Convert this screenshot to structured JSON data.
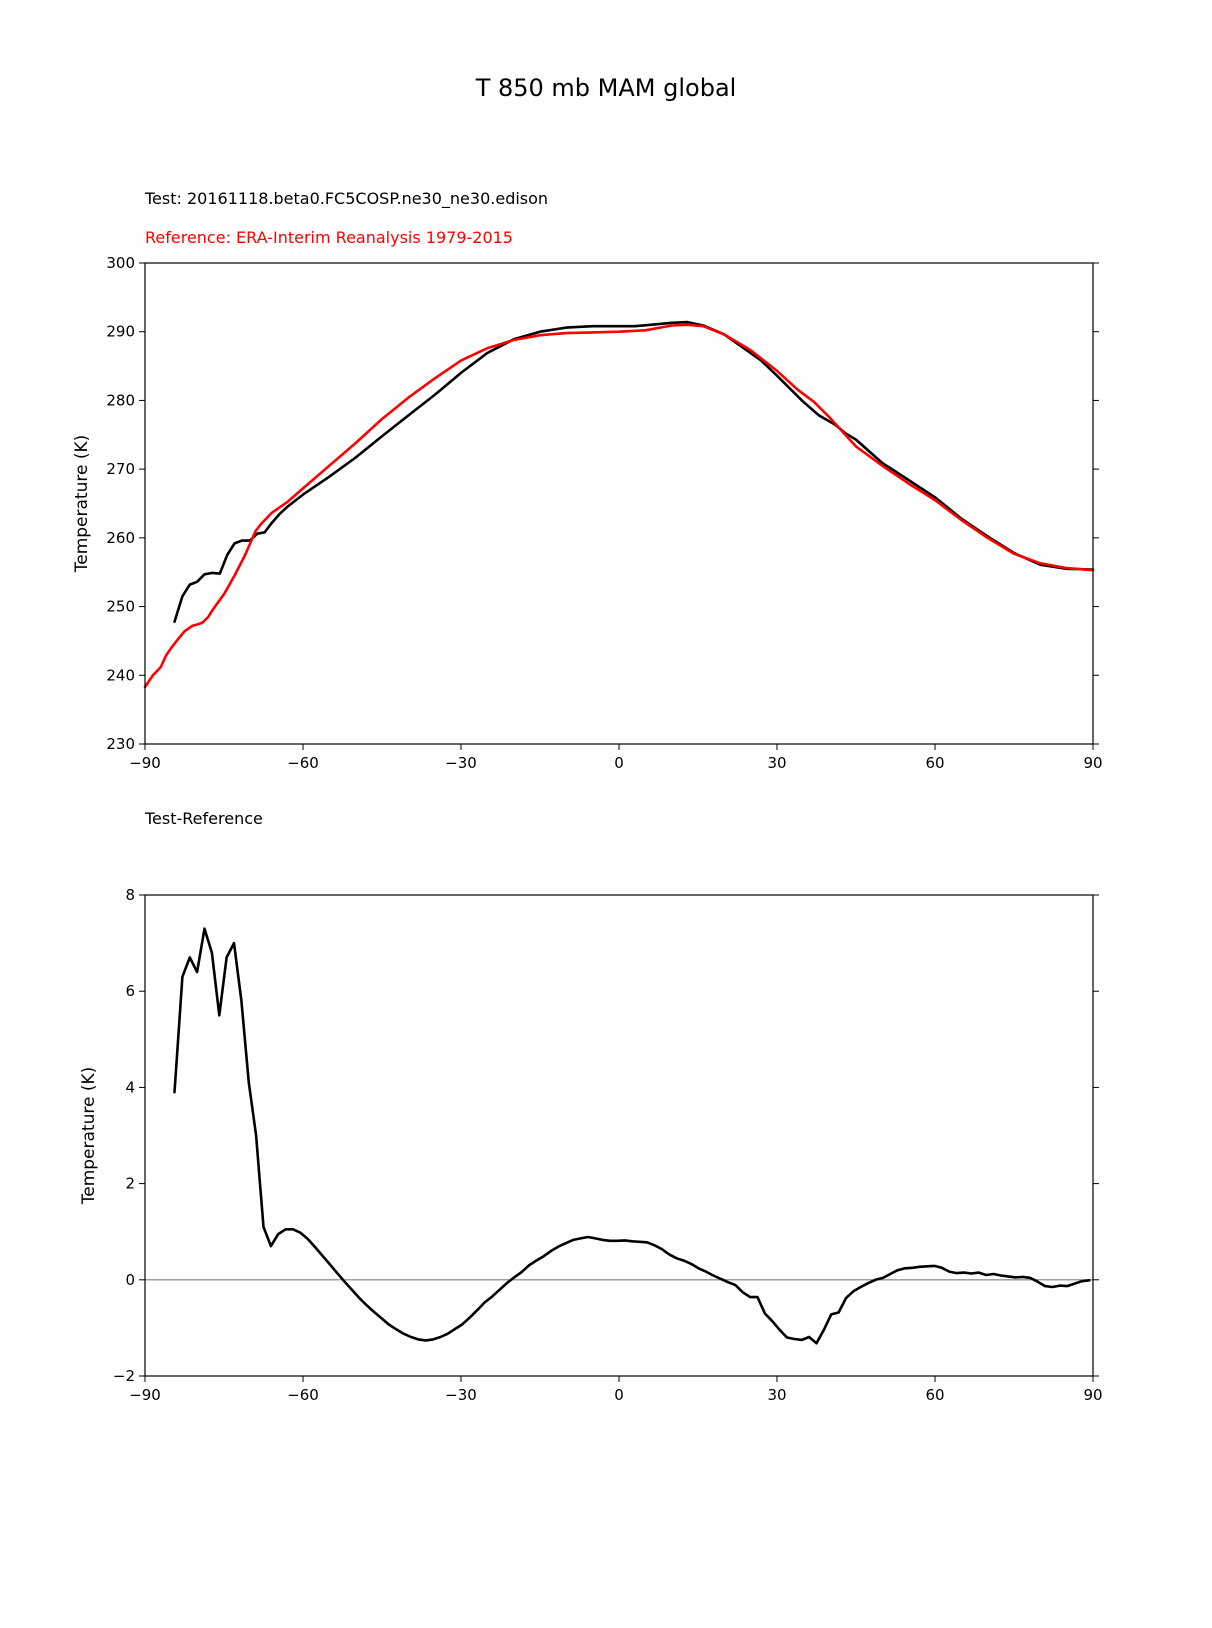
{
  "figure": {
    "title": "T 850 mb MAM global"
  },
  "chart_data": [
    {
      "type": "line",
      "test_label": "Test: 20161118.beta0.FC5COSP.ne30_ne30.edison",
      "reference_label": "Reference: ERA-Interim Reanalysis 1979-2015",
      "ylabel": "Temperature (K)",
      "xlim": [
        -90,
        90
      ],
      "ylim": [
        230,
        300
      ],
      "xticks": [
        -90,
        -60,
        -30,
        0,
        30,
        60,
        90
      ],
      "xtick_labels": [
        "−90",
        "−60",
        "−30",
        "0",
        "30",
        "60",
        "90"
      ],
      "yticks": [
        230,
        240,
        250,
        260,
        270,
        280,
        290,
        300
      ],
      "ytick_labels": [
        "230",
        "240",
        "250",
        "260",
        "270",
        "280",
        "290",
        "300"
      ],
      "grid": false,
      "series": [
        {
          "color": "#000000",
          "x": [
            -84.4,
            -82.9,
            -81.5,
            -80.1,
            -78.7,
            -77.2,
            -75.8,
            -74.4,
            -73.0,
            -71.6,
            -70.1,
            -68.7,
            -67.3,
            -65.9,
            -64.4,
            -63.0,
            -60.0,
            -55.0,
            -50.0,
            -45.0,
            -40.0,
            -35.0,
            -30.0,
            -25.0,
            -20.0,
            -15.0,
            -10.0,
            -5.0,
            0.0,
            3.0,
            6.0,
            10.0,
            13.0,
            16.0,
            20.0,
            23.0,
            27.0,
            30.0,
            35.0,
            38.0,
            41.0,
            43.0,
            45.0,
            50.0,
            55.0,
            60.0,
            65.0,
            70.0,
            75.0,
            80.0,
            85.0,
            90.0
          ],
          "y": [
            247.8,
            251.5,
            253.2,
            253.6,
            254.7,
            254.9,
            254.8,
            257.5,
            259.2,
            259.6,
            259.6,
            260.6,
            260.8,
            262.2,
            263.5,
            264.5,
            266.3,
            268.9,
            271.7,
            274.8,
            277.8,
            280.8,
            284.0,
            286.9,
            288.9,
            290.0,
            290.6,
            290.8,
            290.8,
            290.8,
            291.0,
            291.3,
            291.4,
            290.9,
            289.6,
            288.0,
            285.8,
            283.6,
            279.8,
            277.8,
            276.5,
            275.2,
            274.3,
            270.9,
            268.4,
            265.9,
            262.8,
            260.2,
            257.8,
            256.1,
            255.5,
            255.4
          ]
        },
        {
          "color": "#ff0000",
          "x": [
            -90.0,
            -88.5,
            -87.0,
            -86.0,
            -85.0,
            -84.0,
            -82.5,
            -81.0,
            -80.0,
            -79.0,
            -78.0,
            -77.0,
            -75.0,
            -73.0,
            -71.0,
            -69.0,
            -68.0,
            -66.0,
            -63.0,
            -60.0,
            -55.0,
            -50.0,
            -45.0,
            -40.0,
            -35.0,
            -30.0,
            -25.0,
            -20.0,
            -15.0,
            -10.0,
            -5.0,
            0.0,
            5.0,
            10.0,
            13.0,
            16.0,
            20.0,
            25.0,
            30.0,
            34.0,
            37.0,
            40.0,
            45.0,
            50.0,
            55.0,
            60.0,
            65.0,
            70.0,
            75.0,
            80.0,
            85.0,
            90.0
          ],
          "y": [
            238.3,
            240.0,
            241.2,
            242.9,
            244.0,
            245.0,
            246.4,
            247.2,
            247.4,
            247.7,
            248.5,
            249.7,
            251.8,
            254.5,
            257.5,
            261.0,
            262.0,
            263.6,
            265.2,
            267.2,
            270.5,
            273.8,
            277.3,
            280.4,
            283.2,
            285.8,
            287.6,
            288.8,
            289.5,
            289.8,
            289.9,
            290.0,
            290.2,
            290.9,
            291.0,
            290.8,
            289.6,
            287.3,
            284.3,
            281.5,
            279.8,
            277.5,
            273.3,
            270.5,
            267.9,
            265.5,
            262.6,
            260.0,
            257.7,
            256.3,
            255.6,
            255.3
          ]
        }
      ]
    },
    {
      "type": "line",
      "title": "Test-Reference",
      "ylabel": "Temperature (K)",
      "xlim": [
        -90,
        90
      ],
      "ylim": [
        -2,
        8
      ],
      "xticks": [
        -90,
        -60,
        -30,
        0,
        30,
        60,
        90
      ],
      "xtick_labels": [
        "−90",
        "−60",
        "−30",
        "0",
        "30",
        "60",
        "90"
      ],
      "yticks": [
        -2,
        0,
        2,
        4,
        6,
        8
      ],
      "ytick_labels": [
        "−2",
        "0",
        "2",
        "4",
        "6",
        "8"
      ],
      "grid": false,
      "zero_line_color": "#808080",
      "series": [
        {
          "color": "#000000",
          "x": [
            -84.4,
            -82.9,
            -81.5,
            -80.1,
            -78.7,
            -77.3,
            -75.9,
            -74.5,
            -73.1,
            -71.7,
            -70.3,
            -68.9,
            -67.5,
            -66.1,
            -64.7,
            -63.3,
            -61.9,
            -60.5,
            -59.1,
            -57.7,
            -56.3,
            -54.9,
            -53.5,
            -52.1,
            -50.7,
            -49.3,
            -47.9,
            -46.5,
            -45.1,
            -43.7,
            -42.3,
            -40.9,
            -39.5,
            -38.1,
            -36.7,
            -35.3,
            -33.9,
            -32.5,
            -31.1,
            -29.7,
            -28.3,
            -26.9,
            -25.5,
            -24.1,
            -22.7,
            -21.3,
            -19.9,
            -18.5,
            -17.1,
            -15.7,
            -14.3,
            -12.9,
            -11.5,
            -10.1,
            -8.7,
            -7.3,
            -5.9,
            -4.5,
            -3.1,
            -1.7,
            -0.3,
            1.1,
            2.5,
            3.9,
            5.3,
            6.7,
            8.1,
            9.5,
            10.9,
            12.3,
            13.7,
            15.1,
            16.5,
            17.9,
            19.3,
            20.7,
            22.1,
            23.5,
            24.9,
            26.3,
            27.7,
            29.1,
            30.5,
            31.9,
            33.3,
            34.7,
            36.1,
            37.5,
            38.9,
            40.3,
            41.7,
            43.1,
            44.5,
            45.9,
            47.3,
            48.7,
            50.1,
            51.5,
            52.9,
            54.3,
            55.7,
            57.1,
            58.5,
            59.9,
            61.3,
            62.7,
            64.1,
            65.5,
            66.9,
            68.3,
            69.7,
            71.1,
            72.5,
            73.9,
            75.3,
            76.7,
            78.1,
            79.5,
            80.9,
            82.3,
            83.7,
            85.1,
            86.5,
            87.9,
            89.3
          ],
          "y": [
            3.9,
            6.3,
            6.7,
            6.4,
            7.3,
            6.8,
            5.5,
            6.7,
            7.0,
            5.8,
            4.1,
            3.0,
            1.1,
            0.7,
            0.95,
            1.05,
            1.05,
            0.98,
            0.85,
            0.68,
            0.5,
            0.32,
            0.14,
            -0.04,
            -0.21,
            -0.38,
            -0.53,
            -0.67,
            -0.8,
            -0.93,
            -1.03,
            -1.12,
            -1.19,
            -1.24,
            -1.26,
            -1.24,
            -1.19,
            -1.12,
            -1.02,
            -0.92,
            -0.78,
            -0.63,
            -0.47,
            -0.35,
            -0.21,
            -0.07,
            0.05,
            0.16,
            0.3,
            0.4,
            0.49,
            0.6,
            0.69,
            0.76,
            0.83,
            0.86,
            0.89,
            0.86,
            0.83,
            0.81,
            0.81,
            0.82,
            0.8,
            0.79,
            0.78,
            0.72,
            0.64,
            0.53,
            0.45,
            0.4,
            0.33,
            0.24,
            0.17,
            0.09,
            0.02,
            -0.05,
            -0.11,
            -0.26,
            -0.36,
            -0.36,
            -0.7,
            -0.86,
            -1.04,
            -1.2,
            -1.23,
            -1.25,
            -1.19,
            -1.32,
            -1.04,
            -0.72,
            -0.68,
            -0.38,
            -0.24,
            -0.15,
            -0.07,
            0.0,
            0.04,
            0.12,
            0.2,
            0.24,
            0.25,
            0.27,
            0.28,
            0.29,
            0.25,
            0.17,
            0.14,
            0.15,
            0.13,
            0.15,
            0.1,
            0.12,
            0.09,
            0.07,
            0.05,
            0.06,
            0.04,
            -0.04,
            -0.13,
            -0.15,
            -0.12,
            -0.13,
            -0.08,
            -0.03,
            -0.01
          ]
        }
      ]
    }
  ]
}
